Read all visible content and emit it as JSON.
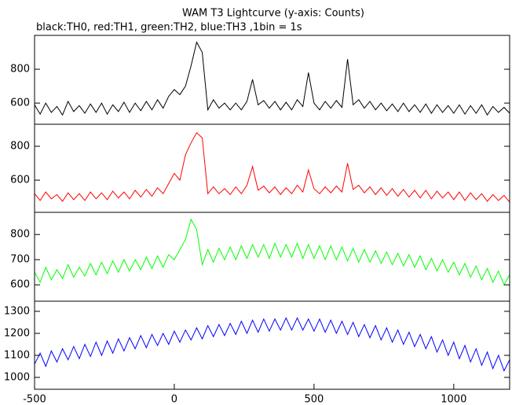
{
  "chart_data": [
    {
      "type": "line",
      "title": "WAM T3 Lightcurve (y-axis: Counts)",
      "subtitle": "black:TH0, red:TH1, green:TH2, blue:TH3 ,1bin = 1s",
      "xlim": [
        -500,
        1200
      ],
      "ylim": [
        475,
        1000
      ],
      "yticks": [
        600,
        800
      ],
      "x": [
        -500,
        -480,
        -460,
        -440,
        -420,
        -400,
        -380,
        -360,
        -340,
        -320,
        -300,
        -280,
        -260,
        -240,
        -220,
        -200,
        -180,
        -160,
        -140,
        -120,
        -100,
        -80,
        -60,
        -40,
        -20,
        0,
        20,
        40,
        60,
        80,
        100,
        120,
        140,
        160,
        180,
        200,
        220,
        240,
        260,
        280,
        300,
        320,
        340,
        360,
        380,
        400,
        420,
        440,
        460,
        480,
        500,
        520,
        540,
        560,
        580,
        600,
        620,
        640,
        660,
        680,
        700,
        720,
        740,
        760,
        780,
        800,
        820,
        840,
        860,
        880,
        900,
        920,
        940,
        960,
        980,
        1000,
        1020,
        1040,
        1060,
        1080,
        1100,
        1120,
        1140,
        1160,
        1180,
        1200
      ],
      "series": [
        {
          "color": "#000000",
          "values": [
            590,
            535,
            600,
            545,
            580,
            530,
            610,
            550,
            585,
            540,
            595,
            545,
            600,
            535,
            590,
            550,
            605,
            545,
            600,
            555,
            610,
            560,
            620,
            570,
            640,
            680,
            650,
            700,
            820,
            960,
            900,
            560,
            620,
            570,
            600,
            560,
            600,
            560,
            610,
            740,
            590,
            615,
            570,
            610,
            560,
            605,
            560,
            620,
            580,
            780,
            600,
            560,
            610,
            570,
            615,
            575,
            860,
            590,
            620,
            570,
            610,
            560,
            600,
            555,
            595,
            550,
            600,
            550,
            590,
            545,
            595,
            540,
            590,
            545,
            585,
            540,
            590,
            535,
            585,
            540,
            590,
            530,
            580,
            545,
            575,
            540
          ]
        }
      ]
    },
    {
      "type": "line",
      "xlim": [
        -500,
        1200
      ],
      "ylim": [
        410,
        930
      ],
      "yticks": [
        600,
        800
      ],
      "x": [
        -500,
        -480,
        -460,
        -440,
        -420,
        -400,
        -380,
        -360,
        -340,
        -320,
        -300,
        -280,
        -260,
        -240,
        -220,
        -200,
        -180,
        -160,
        -140,
        -120,
        -100,
        -80,
        -60,
        -40,
        -20,
        0,
        20,
        40,
        60,
        80,
        100,
        120,
        140,
        160,
        180,
        200,
        220,
        240,
        260,
        280,
        300,
        320,
        340,
        360,
        380,
        400,
        420,
        440,
        460,
        480,
        500,
        520,
        540,
        560,
        580,
        600,
        620,
        640,
        660,
        680,
        700,
        720,
        740,
        760,
        780,
        800,
        820,
        840,
        860,
        880,
        900,
        920,
        940,
        960,
        980,
        1000,
        1020,
        1040,
        1060,
        1080,
        1100,
        1120,
        1140,
        1160,
        1180,
        1200
      ],
      "series": [
        {
          "color": "#ff0000",
          "values": [
            520,
            480,
            530,
            490,
            515,
            475,
            525,
            485,
            520,
            480,
            530,
            490,
            525,
            485,
            535,
            495,
            530,
            490,
            540,
            500,
            545,
            505,
            555,
            520,
            580,
            640,
            600,
            750,
            820,
            880,
            850,
            520,
            560,
            520,
            550,
            515,
            560,
            520,
            570,
            680,
            540,
            565,
            525,
            560,
            515,
            555,
            520,
            570,
            530,
            660,
            550,
            520,
            560,
            525,
            565,
            530,
            700,
            545,
            570,
            525,
            560,
            515,
            555,
            510,
            550,
            505,
            545,
            500,
            540,
            495,
            540,
            490,
            535,
            495,
            530,
            485,
            530,
            480,
            525,
            485,
            520,
            475,
            515,
            480,
            510,
            470
          ]
        }
      ]
    },
    {
      "type": "line",
      "xlim": [
        -500,
        1200
      ],
      "ylim": [
        535,
        888
      ],
      "yticks": [
        600,
        700,
        800
      ],
      "x": [
        -500,
        -480,
        -460,
        -440,
        -420,
        -400,
        -380,
        -360,
        -340,
        -320,
        -300,
        -280,
        -260,
        -240,
        -220,
        -200,
        -180,
        -160,
        -140,
        -120,
        -100,
        -80,
        -60,
        -40,
        -20,
        0,
        20,
        40,
        60,
        80,
        100,
        120,
        140,
        160,
        180,
        200,
        220,
        240,
        260,
        280,
        300,
        320,
        340,
        360,
        380,
        400,
        420,
        440,
        460,
        480,
        500,
        520,
        540,
        560,
        580,
        600,
        620,
        640,
        660,
        680,
        700,
        720,
        740,
        760,
        780,
        800,
        820,
        840,
        860,
        880,
        900,
        920,
        940,
        960,
        980,
        1000,
        1020,
        1040,
        1060,
        1080,
        1100,
        1120,
        1140,
        1160,
        1180,
        1200
      ],
      "series": [
        {
          "color": "#00ff00",
          "values": [
            650,
            610,
            670,
            620,
            660,
            625,
            680,
            630,
            670,
            635,
            685,
            640,
            690,
            645,
            695,
            650,
            700,
            655,
            700,
            660,
            710,
            665,
            715,
            670,
            720,
            700,
            740,
            780,
            860,
            820,
            680,
            740,
            690,
            745,
            700,
            750,
            700,
            755,
            705,
            760,
            710,
            760,
            705,
            765,
            710,
            760,
            710,
            765,
            705,
            760,
            705,
            755,
            700,
            755,
            700,
            750,
            695,
            745,
            690,
            740,
            690,
            735,
            685,
            730,
            680,
            725,
            675,
            720,
            670,
            715,
            660,
            705,
            655,
            700,
            650,
            690,
            640,
            685,
            630,
            675,
            620,
            665,
            610,
            655,
            600,
            640
          ]
        }
      ]
    },
    {
      "type": "line",
      "xlim": [
        -500,
        1200
      ],
      "ylim": [
        946,
        1346
      ],
      "yticks": [
        1000,
        1100,
        1200,
        1300
      ],
      "xticks": [
        -500,
        0,
        500,
        1000
      ],
      "x": [
        -500,
        -480,
        -460,
        -440,
        -420,
        -400,
        -380,
        -360,
        -340,
        -320,
        -300,
        -280,
        -260,
        -240,
        -220,
        -200,
        -180,
        -160,
        -140,
        -120,
        -100,
        -80,
        -60,
        -40,
        -20,
        0,
        20,
        40,
        60,
        80,
        100,
        120,
        140,
        160,
        180,
        200,
        220,
        240,
        260,
        280,
        300,
        320,
        340,
        360,
        380,
        400,
        420,
        440,
        460,
        480,
        500,
        520,
        540,
        560,
        580,
        600,
        620,
        640,
        660,
        680,
        700,
        720,
        740,
        760,
        780,
        800,
        820,
        840,
        860,
        880,
        900,
        920,
        940,
        960,
        980,
        1000,
        1020,
        1040,
        1060,
        1080,
        1100,
        1120,
        1140,
        1160,
        1180,
        1200
      ],
      "series": [
        {
          "color": "#0000ff",
          "values": [
            1060,
            1110,
            1050,
            1120,
            1070,
            1130,
            1080,
            1140,
            1085,
            1150,
            1095,
            1160,
            1100,
            1165,
            1110,
            1175,
            1120,
            1180,
            1130,
            1190,
            1135,
            1195,
            1145,
            1200,
            1150,
            1210,
            1160,
            1215,
            1170,
            1225,
            1175,
            1235,
            1185,
            1240,
            1190,
            1245,
            1195,
            1255,
            1200,
            1260,
            1205,
            1265,
            1210,
            1265,
            1215,
            1270,
            1215,
            1270,
            1215,
            1265,
            1210,
            1265,
            1205,
            1260,
            1200,
            1255,
            1195,
            1250,
            1185,
            1240,
            1180,
            1235,
            1170,
            1225,
            1160,
            1215,
            1150,
            1205,
            1140,
            1195,
            1130,
            1185,
            1115,
            1170,
            1100,
            1160,
            1085,
            1145,
            1070,
            1130,
            1055,
            1115,
            1040,
            1100,
            1030,
            1080
          ]
        }
      ]
    }
  ]
}
